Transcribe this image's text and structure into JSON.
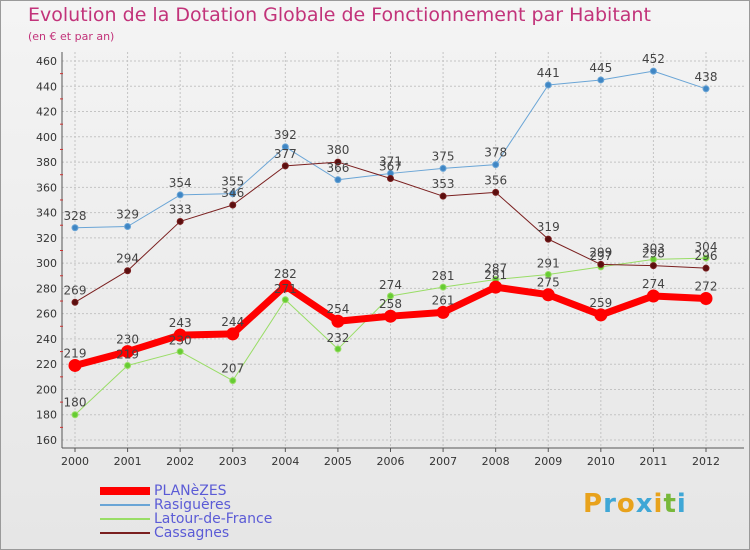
{
  "header": {
    "title": "Evolution de la Dotation Globale de Fonctionnement par Habitant",
    "subtitle": "(en € et par an)"
  },
  "brand": {
    "letters": [
      "P",
      "r",
      "o",
      "x",
      "i",
      "t",
      "i"
    ],
    "colors": [
      "#e8a21c",
      "#3fa7d6",
      "#e8a21c",
      "#3fa7d6",
      "#e8a21c",
      "#78b83a",
      "#3fa7d6"
    ]
  },
  "chart_data": {
    "type": "line",
    "title": "Evolution de la Dotation Globale de Fonctionnement par Habitant",
    "subtitle": "(en € et par an)",
    "xlabel": "",
    "ylabel": "",
    "x": [
      "2000",
      "2001",
      "2002",
      "2003",
      "2004",
      "2005",
      "2006",
      "2007",
      "2008",
      "2009",
      "2010",
      "2011",
      "2012"
    ],
    "ylim": [
      160,
      460
    ],
    "yticks": [
      160,
      180,
      200,
      220,
      240,
      260,
      280,
      300,
      320,
      340,
      360,
      380,
      400,
      420,
      440,
      460
    ],
    "grid": "horizontal",
    "legend_position": "bottom-left",
    "series": [
      {
        "name": "PLANèZES",
        "color": "#ff0000",
        "values": [
          219,
          230,
          243,
          244,
          282,
          254,
          258,
          261,
          281,
          275,
          259,
          274,
          272
        ]
      },
      {
        "name": "Rasiguères",
        "color": "#6aa5d6",
        "values": [
          328,
          329,
          354,
          355,
          392,
          366,
          371,
          375,
          378,
          441,
          445,
          452,
          438
        ]
      },
      {
        "name": "Latour-de-France",
        "color": "#99dd66",
        "values": [
          180,
          219,
          230,
          207,
          271,
          232,
          274,
          281,
          287,
          291,
          297,
          303,
          304
        ]
      },
      {
        "name": "Cassagnes",
        "color": "#7a1f1f",
        "values": [
          269,
          294,
          333,
          346,
          377,
          380,
          367,
          353,
          356,
          319,
          299,
          298,
          296
        ]
      }
    ]
  }
}
